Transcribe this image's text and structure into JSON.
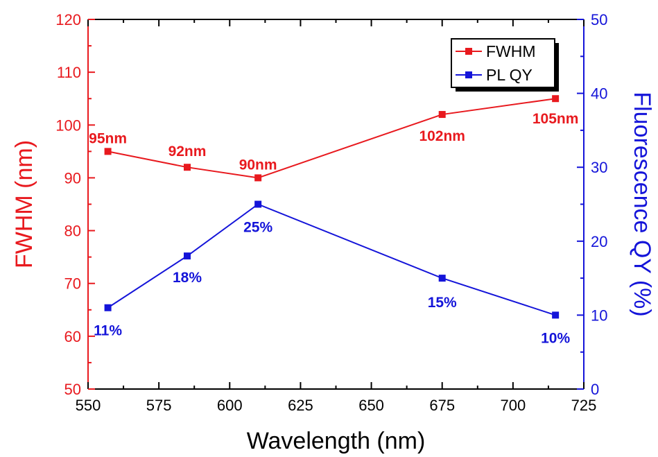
{
  "chart_data": {
    "type": "line",
    "x": [
      557,
      585,
      610,
      675,
      715
    ],
    "xlabel": "Wavelength (nm)",
    "xlim": [
      550,
      725
    ],
    "xticks": [
      "550",
      "575",
      "600",
      "625",
      "650",
      "675",
      "700",
      "725"
    ],
    "ylabel_left": "FWHM (nm)",
    "ylim_left": [
      50,
      120
    ],
    "yticks_left": [
      "50",
      "60",
      "70",
      "80",
      "90",
      "100",
      "110",
      "120"
    ],
    "ylabel_right": "Fluorescence QY (%)",
    "ylim_right": [
      0,
      50
    ],
    "yticks_right": [
      "0",
      "10",
      "20",
      "30",
      "40",
      "50"
    ],
    "grid": false,
    "legend_position": "top-right",
    "series": [
      {
        "name": "FWHM",
        "axis": "left",
        "color": "#e8191e",
        "values": [
          95,
          92,
          90,
          102,
          105
        ],
        "labels": [
          "95nm",
          "92nm",
          "90nm",
          "102nm",
          "105nm"
        ]
      },
      {
        "name": "PL QY",
        "axis": "right",
        "color": "#1414d9",
        "values": [
          11,
          18,
          25,
          15,
          10
        ],
        "labels": [
          "11%",
          "18%",
          "25%",
          "15%",
          "10%"
        ]
      }
    ]
  }
}
